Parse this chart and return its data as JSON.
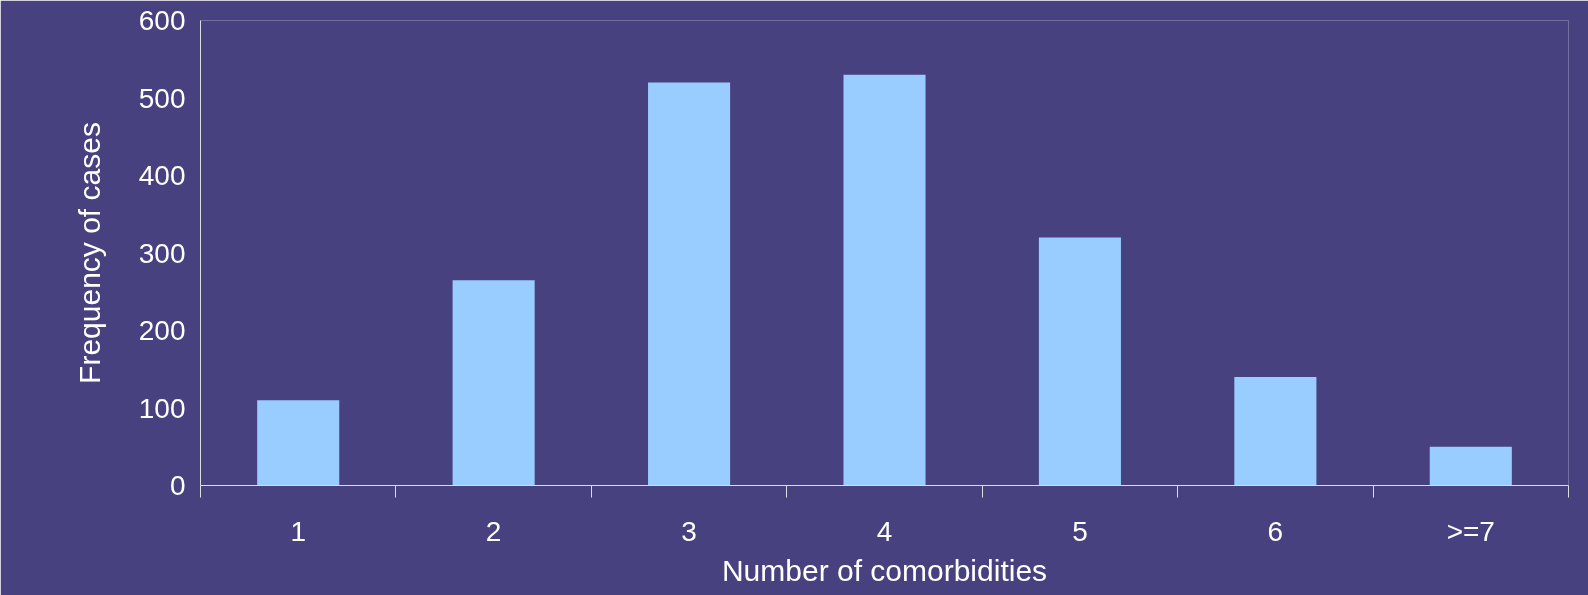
{
  "chart_data": {
    "type": "bar",
    "xlabel": "Number of comorbidities",
    "ylabel": "Frequency of cases",
    "categories": [
      "1",
      "2",
      "3",
      "4",
      "5",
      "6",
      ">=7"
    ],
    "values": [
      110,
      265,
      520,
      530,
      320,
      140,
      50
    ],
    "color": "#99ccff",
    "ylim": [
      0,
      600
    ],
    "yticks": [
      0,
      100,
      200,
      300,
      400,
      500,
      600
    ]
  }
}
